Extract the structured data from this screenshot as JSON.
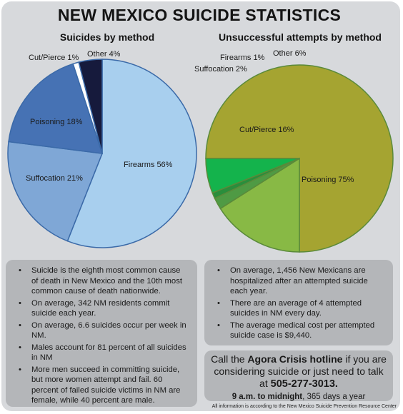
{
  "title": "NEW MEXICO SUICIDE STATISTICS",
  "chart_data": [
    {
      "type": "pie",
      "title": "Suicides by method",
      "slices": [
        {
          "label": "Firearms 56%",
          "category": "Firearms",
          "value": 56,
          "color": "#a8cfee"
        },
        {
          "label": "Suffocation 21%",
          "category": "Suffocation",
          "value": 21,
          "color": "#7fa7d6"
        },
        {
          "label": "Poisoning 18%",
          "category": "Poisoning",
          "value": 18,
          "color": "#4672b4"
        },
        {
          "label": "Cut/Pierce 1%",
          "category": "Cut/Pierce",
          "value": 1,
          "color": "#ffffff"
        },
        {
          "label": "Other 4%",
          "category": "Other",
          "value": 4,
          "color": "#161a3c"
        }
      ]
    },
    {
      "type": "pie",
      "title": "Unsuccessful attempts by method",
      "slices": [
        {
          "label": "Poisoning 75%",
          "category": "Poisoning",
          "value": 75,
          "color": "#a5a431"
        },
        {
          "label": "Cut/Pierce 16%",
          "category": "Cut/Pierce",
          "value": 16,
          "color": "#88b945"
        },
        {
          "label": "Suffocation 2%",
          "category": "Suffocation",
          "value": 2,
          "color": "#4f9a44"
        },
        {
          "label": "Firearms 1%",
          "category": "Firearms",
          "value": 1,
          "color": "#2a8e3c"
        },
        {
          "label": "Other 6%",
          "category": "Other",
          "value": 6,
          "color": "#14b34c"
        }
      ]
    }
  ],
  "left_facts": [
    "Suicide is the eighth most common cause of death in New Mexico and the 10th most common cause of death nationwide.",
    "On average, 342 NM residents commit suicide each year.",
    "On average, 6.6 suicides occur per week in NM.",
    "Males account for 81 percent of all suicides in NM",
    "More men succeed in committing suicide, but more women attempt and fail. 60 percent of failed suicide victims in NM are female, while 40 percent are male."
  ],
  "right_facts": [
    "On average, 1,456 New Mexicans are hospitalized after an attempted suicide each year.",
    "There are an average of 4 attempted suicides in NM every day.",
    "The average medical cost per attempted suicide case is $9,440."
  ],
  "bullet": "•",
  "hotline": {
    "prefix": "Call the",
    "name": "Agora Crisis hotline",
    "middle": "if you are considering suicide or just need to talk at",
    "phone": "505-277-3013.",
    "hours_bold": "9 a.m. to midnight",
    "hours_rest": ", 365 days a year"
  },
  "footnote": "All information is according to the New Mexico Suicide Prevention Resource Center"
}
